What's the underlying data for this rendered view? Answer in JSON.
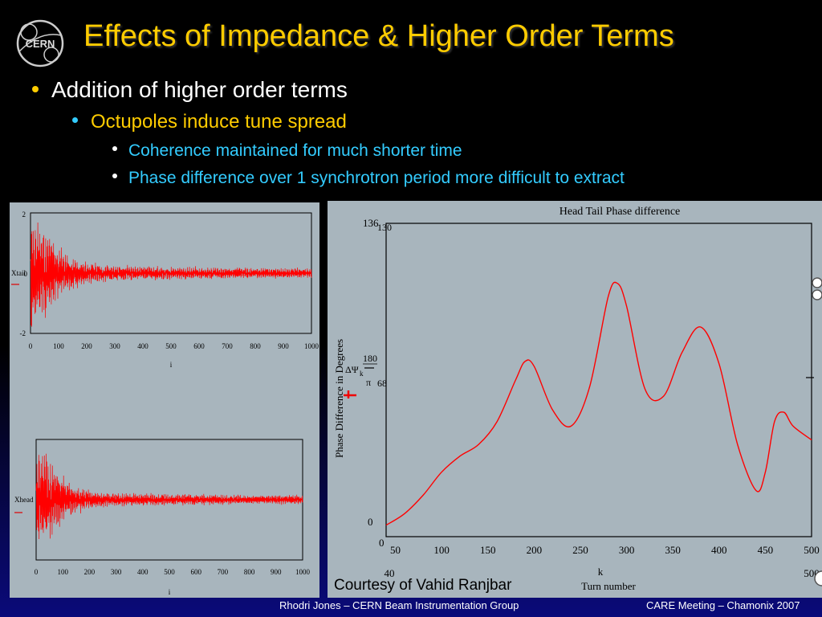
{
  "slide": {
    "logo_text": "CERN",
    "title": "Effects of Impedance & Higher Order Terms",
    "bullets": {
      "level1": "Addition of higher order terms",
      "level2": "Octupoles induce tune spread",
      "level3": [
        "Coherence maintained for much shorter time",
        "Phase difference over 1 synchrotron period more difficult to extract"
      ]
    },
    "courtesy": "Courtesy of Vahid Ranjbar",
    "footer_left": "Rhodri Jones – CERN Beam Instrumentation Group",
    "footer_right": "CARE Meeting – Chamonix 2007",
    "colors": {
      "title": "#ffcc00",
      "level1": "#ffffff",
      "level2": "#ffcc00",
      "level3": "#33ccff",
      "trace": "#ff0000"
    }
  },
  "chart_data": [
    {
      "type": "line",
      "ylabel": "Xtail",
      "xlabel": "i",
      "yticks": [
        "2",
        "0",
        "-2"
      ],
      "xticks": [
        "0",
        "100",
        "200",
        "300",
        "400",
        "500",
        "600",
        "700",
        "800",
        "900",
        "1000"
      ],
      "x_range": [
        0,
        1000
      ],
      "ylim": [
        -2,
        2
      ],
      "envelope": [
        [
          0,
          1.9
        ],
        [
          50,
          1.4
        ],
        [
          100,
          0.8
        ],
        [
          150,
          0.5
        ],
        [
          200,
          0.35
        ],
        [
          300,
          0.25
        ],
        [
          500,
          0.2
        ],
        [
          700,
          0.18
        ],
        [
          1000,
          0.15
        ]
      ]
    },
    {
      "type": "line",
      "ylabel": "Xhead",
      "xlabel": "i",
      "xticks": [
        "0",
        "100",
        "200",
        "300",
        "400",
        "500",
        "600",
        "700",
        "800",
        "900",
        "1000"
      ],
      "x_range": [
        0,
        1000
      ],
      "ylim": [
        -2,
        2
      ],
      "envelope": [
        [
          0,
          1.9
        ],
        [
          50,
          1.3
        ],
        [
          100,
          0.7
        ],
        [
          150,
          0.45
        ],
        [
          200,
          0.3
        ],
        [
          300,
          0.22
        ],
        [
          500,
          0.18
        ],
        [
          700,
          0.16
        ],
        [
          1000,
          0.14
        ]
      ]
    },
    {
      "type": "line",
      "title": "Head Tail Phase difference",
      "xlabel": "Turn number",
      "xlabel_var": "k",
      "ylabel": "Phase Difference in Degrees",
      "ylabel_expr": [
        "ΔΨ",
        "k",
        "180",
        "π"
      ],
      "y_marks": [
        "136",
        "130",
        "68",
        "0"
      ],
      "x_bounds": [
        "40",
        "500"
      ],
      "xticks": [
        "50",
        "100",
        "150",
        "200",
        "250",
        "300",
        "350",
        "400",
        "450",
        "500"
      ],
      "xlim": [
        40,
        500
      ],
      "ylim": [
        0,
        136
      ],
      "series": [
        {
          "x": [
            40,
            60,
            80,
            100,
            120,
            140,
            160,
            180,
            190,
            200,
            220,
            240,
            260,
            280,
            290,
            300,
            320,
            340,
            360,
            380,
            400,
            420,
            440,
            450,
            460,
            470,
            480,
            500
          ],
          "y": [
            5,
            10,
            18,
            28,
            35,
            40,
            50,
            68,
            76,
            74,
            55,
            48,
            65,
            104,
            110,
            100,
            64,
            61,
            80,
            91,
            75,
            40,
            20,
            28,
            50,
            54,
            48,
            42
          ]
        }
      ]
    }
  ]
}
